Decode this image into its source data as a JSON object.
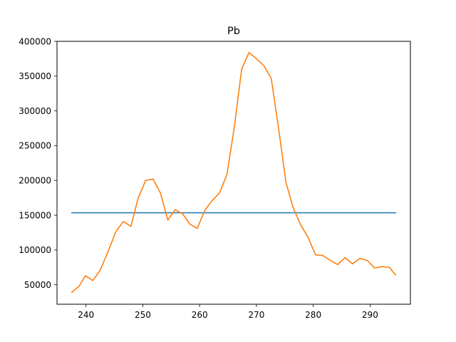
{
  "chart_data": {
    "type": "line",
    "title": "Pb",
    "xlabel": "",
    "ylabel": "",
    "xlim": [
      234.9,
      297.1
    ],
    "ylim": [
      22000,
      400000
    ],
    "xticks": [
      240,
      250,
      260,
      270,
      280,
      290
    ],
    "yticks": [
      50000,
      100000,
      150000,
      200000,
      250000,
      300000,
      350000,
      400000
    ],
    "grid": false,
    "series": [
      {
        "color": "#1f77b4",
        "x": [
          237.5,
          294.5
        ],
        "y": [
          153500,
          153500
        ]
      },
      {
        "color": "#ff7f0e",
        "x": [
          237.5,
          238.8,
          239.9,
          241.2,
          242.5,
          243.9,
          245.3,
          246.6,
          247.9,
          249.2,
          250.5,
          251.8,
          253.1,
          254.4,
          255.7,
          257.0,
          258.3,
          259.6,
          260.9,
          262.2,
          263.5,
          264.8,
          266.1,
          267.4,
          268.7,
          270.0,
          271.3,
          272.6,
          273.9,
          275.2,
          276.5,
          277.8,
          279.1,
          280.4,
          281.7,
          283.0,
          284.3,
          285.6,
          286.9,
          288.2,
          289.5,
          290.8,
          292.1,
          293.4,
          294.5
        ],
        "y": [
          39000,
          48000,
          63000,
          56000,
          71000,
          98000,
          127000,
          141000,
          134000,
          175000,
          200000,
          202000,
          182000,
          143000,
          158000,
          152000,
          137000,
          131000,
          157000,
          171000,
          182000,
          208000,
          276000,
          360000,
          384000,
          375000,
          365000,
          347000,
          275000,
          197000,
          160000,
          136000,
          118000,
          93000,
          92000,
          85000,
          79000,
          89000,
          80000,
          88000,
          85000,
          74000,
          76000,
          75000,
          64000
        ]
      }
    ]
  }
}
